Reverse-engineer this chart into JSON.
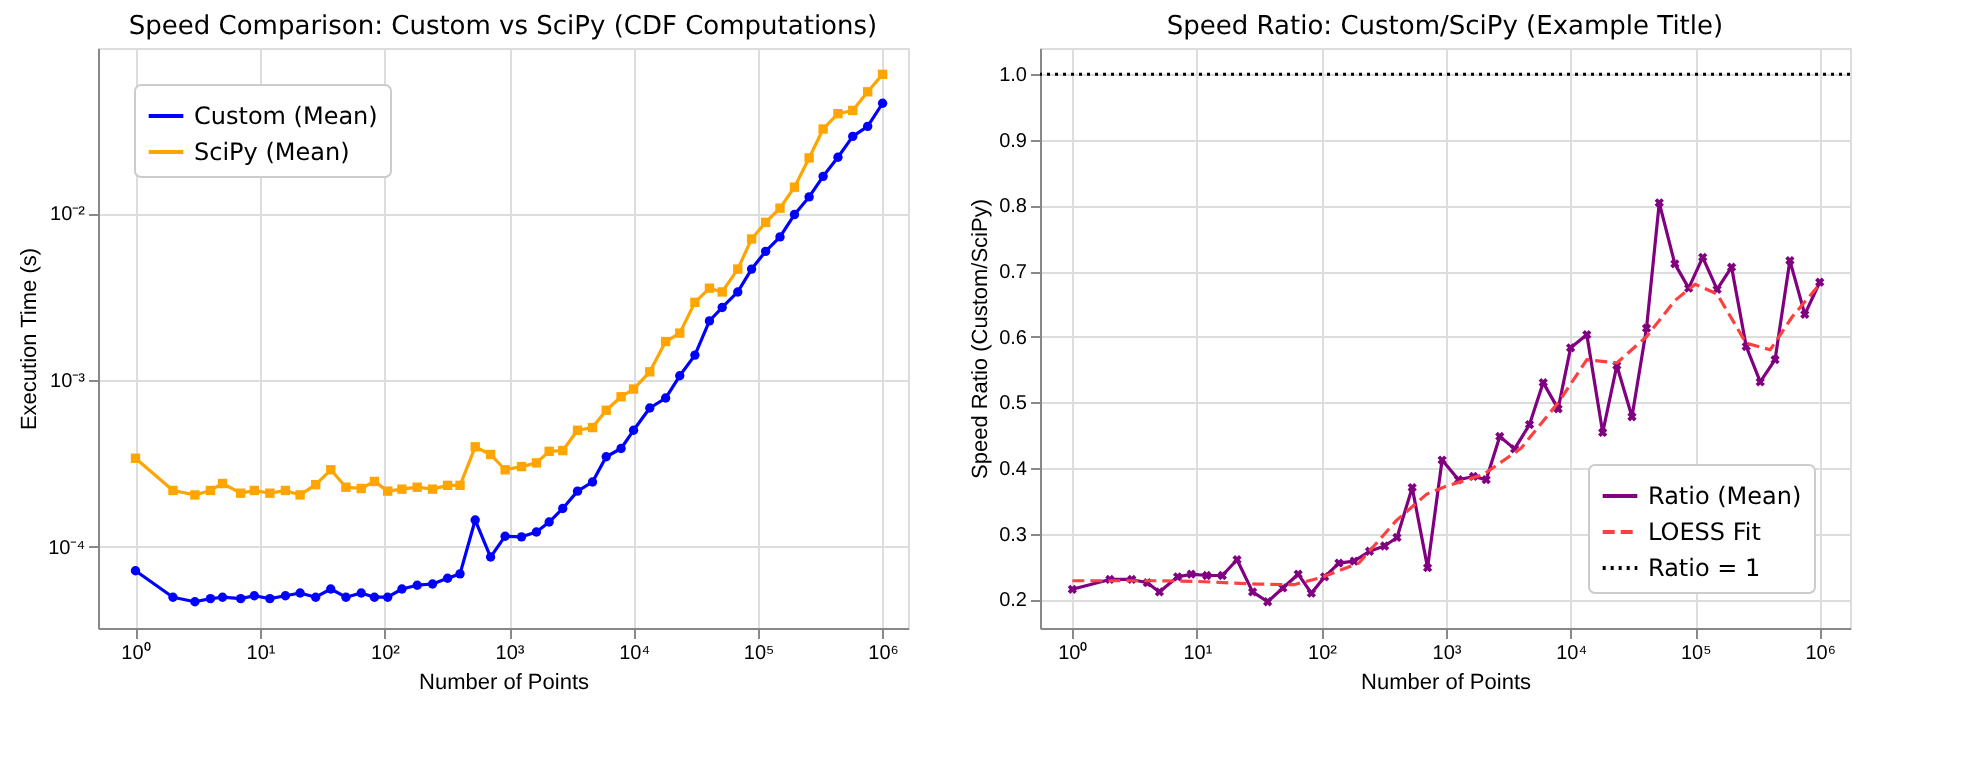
{
  "chart_data": [
    {
      "type": "line",
      "title": "Speed Comparison: Custom vs SciPy (CDF Computations)",
      "xlabel": "Number of Points",
      "ylabel": "Execution Time (s)",
      "log": "xy",
      "grid": true,
      "legend": "top left",
      "xlim": [
        0.5,
        1600000
      ],
      "ylim": [
        3.27e-05,
        0.0975
      ],
      "xticks": [
        {
          "value": 1,
          "label": "10⁰"
        },
        {
          "value": 10,
          "label": "10¹"
        },
        {
          "value": 100,
          "label": "10²"
        },
        {
          "value": 1000,
          "label": "10³"
        },
        {
          "value": 10000,
          "label": "10⁴"
        },
        {
          "value": 100000,
          "label": "10⁵"
        },
        {
          "value": 1000000,
          "label": "10⁶"
        }
      ],
      "yticks": [
        {
          "value": 0.0001,
          "label": "10⁻⁴"
        },
        {
          "value": 0.001,
          "label": "10⁻³"
        },
        {
          "value": 0.01,
          "label": "10⁻²"
        }
      ],
      "x": [
        1,
        2,
        3,
        4,
        5,
        7,
        9,
        12,
        16,
        21,
        28,
        37,
        49,
        65,
        83,
        106,
        138,
        183,
        243,
        321,
        404,
        535,
        711,
        930,
        1260,
        1660,
        2100,
        2700,
        3550,
        4680,
        6030,
        7940,
        10000,
        13500,
        18100,
        23500,
        31100,
        40700,
        51500,
        68700,
        88700,
        115000,
        150000,
        196000,
        257000,
        333000,
        438000,
        576000,
        759000,
        1000000
      ],
      "series": [
        {
          "name": "Custom (Mean)",
          "color": "#0000ff",
          "marker": "circle",
          "line_style": "solid",
          "values": [
            7.2e-05,
            5e-05,
            4.7e-05,
            4.9e-05,
            5e-05,
            4.9e-05,
            5.1e-05,
            4.9e-05,
            5.1e-05,
            5.3e-05,
            5e-05,
            5.6e-05,
            5e-05,
            5.3e-05,
            5e-05,
            5e-05,
            5.6e-05,
            5.9e-05,
            6e-05,
            6.5e-05,
            6.9e-05,
            0.000145,
            8.7e-05,
            0.000116,
            0.000115,
            0.000123,
            0.000141,
            0.00017,
            0.000216,
            0.000245,
            0.000347,
            0.000389,
            0.0005,
            0.00068,
            0.00078,
            0.00106,
            0.00141,
            0.00226,
            0.00272,
            0.00337,
            0.00462,
            0.0059,
            0.0072,
            0.0098,
            0.0125,
            0.0166,
            0.0216,
            0.0288,
            0.0331,
            0.0455
          ]
        },
        {
          "name": "SciPy (Mean)",
          "color": "#ffa500",
          "marker": "square",
          "line_style": "solid",
          "values": [
            0.00034,
            0.000218,
            0.000205,
            0.000218,
            0.00024,
            0.00021,
            0.000218,
            0.00021,
            0.000218,
            0.000205,
            0.000236,
            0.00029,
            0.000228,
            0.000224,
            0.000247,
            0.000216,
            0.000222,
            0.000228,
            0.000222,
            0.000234,
            0.000234,
            0.000398,
            0.000358,
            0.00029,
            0.000303,
            0.000319,
            0.000374,
            0.000378,
            0.0005,
            0.000519,
            0.000659,
            0.000794,
            0.000883,
            0.00112,
            0.0017,
            0.00191,
            0.00292,
            0.00355,
            0.00337,
            0.00462,
            0.007,
            0.0088,
            0.0107,
            0.0143,
            0.0214,
            0.0319,
            0.0394,
            0.0412,
            0.0533,
            0.0678
          ]
        }
      ]
    },
    {
      "type": "line",
      "title": "Speed Ratio: Custom/SciPy (Example Title)",
      "xlabel": "Number of Points",
      "ylabel": "Speed Ratio (Custom/SciPy)",
      "log": "x",
      "grid": true,
      "legend": "bottom right",
      "xlim": [
        0.55,
        1750000
      ],
      "ylim": [
        0.156,
        1.04
      ],
      "xticks": [
        {
          "value": 1,
          "label": "10⁰"
        },
        {
          "value": 10,
          "label": "10¹"
        },
        {
          "value": 100,
          "label": "10²"
        },
        {
          "value": 1000,
          "label": "10³"
        },
        {
          "value": 10000,
          "label": "10⁴"
        },
        {
          "value": 100000,
          "label": "10⁵"
        },
        {
          "value": 1000000,
          "label": "10⁶"
        }
      ],
      "yticks": [
        {
          "value": 0.2,
          "label": "0.2"
        },
        {
          "value": 0.3,
          "label": "0.3"
        },
        {
          "value": 0.4,
          "label": "0.4"
        },
        {
          "value": 0.5,
          "label": "0.5"
        },
        {
          "value": 0.6,
          "label": "0.6"
        },
        {
          "value": 0.7,
          "label": "0.7"
        },
        {
          "value": 0.8,
          "label": "0.8"
        },
        {
          "value": 0.9,
          "label": "0.9"
        },
        {
          "value": 1.0,
          "label": "1.0"
        }
      ],
      "x": [
        1,
        2,
        3,
        4,
        5,
        7,
        9,
        12,
        16,
        21,
        28,
        37,
        49,
        65,
        83,
        106,
        138,
        183,
        243,
        321,
        404,
        535,
        711,
        930,
        1260,
        1660,
        2100,
        2700,
        3550,
        4680,
        6030,
        7940,
        10000,
        13500,
        18100,
        23500,
        31100,
        40700,
        51500,
        68700,
        88700,
        115000,
        150000,
        196000,
        257000,
        333000,
        438000,
        576000,
        759000,
        1000000
      ],
      "series": [
        {
          "name": "Ratio (Mean)",
          "color": "#800080",
          "marker": "cross",
          "line_style": "solid",
          "values": [
            0.215,
            0.23,
            0.23,
            0.225,
            0.211,
            0.234,
            0.238,
            0.236,
            0.236,
            0.26,
            0.211,
            0.196,
            0.217,
            0.238,
            0.209,
            0.234,
            0.255,
            0.258,
            0.273,
            0.281,
            0.294,
            0.37,
            0.248,
            0.412,
            0.382,
            0.387,
            0.382,
            0.448,
            0.429,
            0.466,
            0.53,
            0.49,
            0.583,
            0.603,
            0.454,
            0.556,
            0.478,
            0.613,
            0.804,
            0.711,
            0.674,
            0.721,
            0.672,
            0.706,
            0.585,
            0.531,
            0.565,
            0.716,
            0.634,
            0.683
          ]
        },
        {
          "name": "LOESS Fit",
          "color": "#ff4040",
          "marker": "none",
          "line_style": "dashed",
          "x": [
            1,
            5,
            10,
            30,
            60,
            100,
            200,
            400,
            700,
            1000,
            2000,
            4000,
            8000,
            13500,
            23500,
            40700,
            68700,
            100000,
            150000,
            257000,
            400000,
            600000,
            1000000
          ],
          "values": [
            0.228,
            0.228,
            0.227,
            0.223,
            0.222,
            0.233,
            0.255,
            0.32,
            0.36,
            0.372,
            0.39,
            0.43,
            0.5,
            0.565,
            0.56,
            0.6,
            0.655,
            0.68,
            0.665,
            0.59,
            0.58,
            0.63,
            0.68
          ]
        }
      ],
      "ref_lines": [
        {
          "axis": "y",
          "value": 1.0,
          "label": "Ratio = 1",
          "color": "#000000",
          "line_style": "dotted"
        }
      ]
    }
  ]
}
